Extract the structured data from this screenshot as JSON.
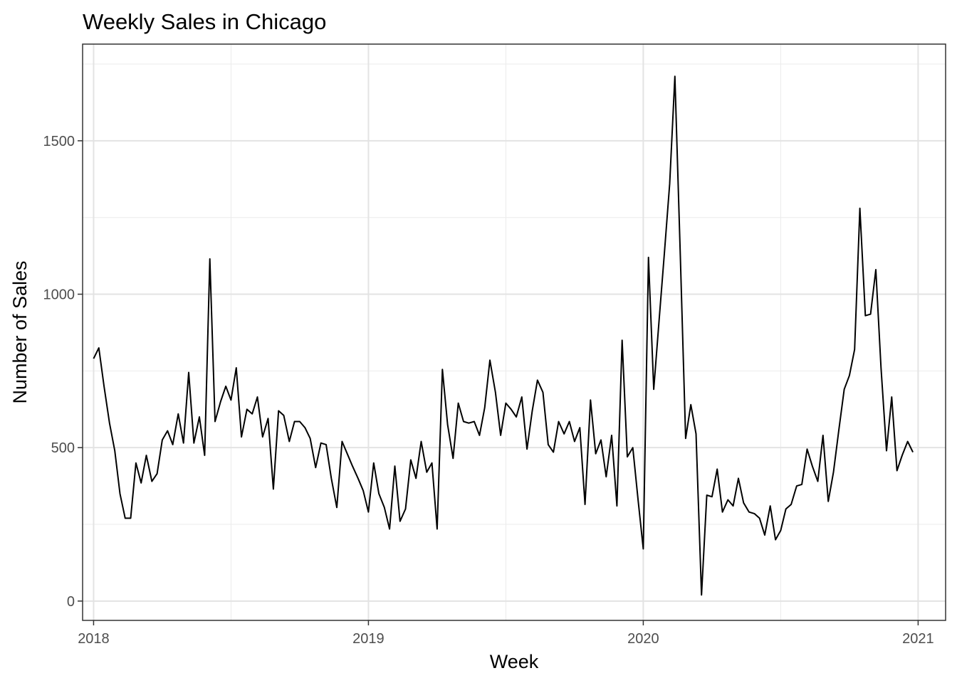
{
  "chart_data": {
    "type": "line",
    "title": "Weekly Sales in Chicago",
    "xlabel": "Week",
    "ylabel": "Number of Sales",
    "xlim": [
      2017.96,
      2021.1
    ],
    "ylim": [
      -63,
      1815
    ],
    "x_ticks": [
      2018,
      2019,
      2020,
      2021
    ],
    "x_tick_labels": [
      "2018",
      "2019",
      "2020",
      "2021"
    ],
    "y_ticks": [
      0,
      500,
      1000,
      1500
    ],
    "y_tick_labels": [
      "0",
      "500",
      "1000",
      "1500"
    ],
    "grid": true,
    "theme": "black-and-white",
    "series": [
      {
        "name": "Weekly Sales",
        "color": "#000000",
        "x": [
          2018.0,
          2018.019,
          2018.038,
          2018.058,
          2018.077,
          2018.096,
          2018.115,
          2018.135,
          2018.154,
          2018.173,
          2018.192,
          2018.212,
          2018.231,
          2018.25,
          2018.269,
          2018.288,
          2018.308,
          2018.327,
          2018.346,
          2018.365,
          2018.385,
          2018.404,
          2018.423,
          2018.442,
          2018.462,
          2018.481,
          2018.5,
          2018.519,
          2018.538,
          2018.558,
          2018.577,
          2018.596,
          2018.615,
          2018.635,
          2018.654,
          2018.673,
          2018.692,
          2018.712,
          2018.731,
          2018.75,
          2018.769,
          2018.788,
          2018.808,
          2018.827,
          2018.846,
          2018.865,
          2018.885,
          2018.904,
          2018.923,
          2018.942,
          2018.962,
          2018.981,
          2019.0,
          2019.019,
          2019.038,
          2019.058,
          2019.077,
          2019.096,
          2019.115,
          2019.135,
          2019.154,
          2019.173,
          2019.192,
          2019.212,
          2019.231,
          2019.25,
          2019.269,
          2019.288,
          2019.308,
          2019.327,
          2019.346,
          2019.365,
          2019.385,
          2019.404,
          2019.423,
          2019.442,
          2019.462,
          2019.481,
          2019.5,
          2019.519,
          2019.538,
          2019.558,
          2019.577,
          2019.596,
          2019.615,
          2019.635,
          2019.654,
          2019.673,
          2019.692,
          2019.712,
          2019.731,
          2019.75,
          2019.769,
          2019.788,
          2019.808,
          2019.827,
          2019.846,
          2019.865,
          2019.885,
          2019.904,
          2019.923,
          2019.942,
          2019.962,
          2019.981,
          2020.0,
          2020.019,
          2020.038,
          2020.058,
          2020.077,
          2020.096,
          2020.115,
          2020.135,
          2020.154,
          2020.173,
          2020.192,
          2020.212,
          2020.231,
          2020.25,
          2020.269,
          2020.288,
          2020.308,
          2020.327,
          2020.346,
          2020.365,
          2020.385,
          2020.404,
          2020.423,
          2020.442,
          2020.462,
          2020.481,
          2020.5,
          2020.519,
          2020.538,
          2020.558,
          2020.577,
          2020.596,
          2020.615,
          2020.635,
          2020.654,
          2020.673,
          2020.692,
          2020.712,
          2020.731,
          2020.75,
          2020.769,
          2020.788,
          2020.808,
          2020.827,
          2020.846,
          2020.865,
          2020.885,
          2020.904,
          2020.923,
          2020.942,
          2020.962,
          2020.981
        ],
        "values": [
          790,
          825,
          700,
          580,
          490,
          350,
          270,
          270,
          450,
          385,
          475,
          390,
          415,
          525,
          555,
          510,
          610,
          515,
          745,
          515,
          600,
          475,
          1115,
          585,
          650,
          700,
          655,
          760,
          535,
          625,
          610,
          665,
          535,
          595,
          365,
          620,
          605,
          520,
          585,
          585,
          565,
          530,
          435,
          515,
          510,
          400,
          305,
          520,
          480,
          440,
          400,
          360,
          290,
          450,
          350,
          305,
          235,
          440,
          260,
          300,
          460,
          400,
          520,
          420,
          450,
          235,
          755,
          575,
          465,
          645,
          585,
          580,
          585,
          540,
          630,
          785,
          680,
          540,
          645,
          625,
          600,
          665,
          495,
          620,
          720,
          680,
          510,
          485,
          585,
          545,
          585,
          520,
          565,
          315,
          655,
          480,
          525,
          405,
          540,
          310,
          850,
          470,
          500,
          330,
          170,
          1120,
          690,
          920,
          1135,
          1360,
          1710,
          1120,
          530,
          640,
          545,
          20,
          345,
          340,
          430,
          290,
          330,
          310,
          400,
          320,
          290,
          285,
          270,
          215,
          310,
          200,
          230,
          300,
          315,
          375,
          380,
          495,
          440,
          390,
          540,
          325,
          420,
          560,
          690,
          735,
          820,
          1280,
          930,
          935,
          1080,
          760,
          490,
          665,
          425,
          475,
          520,
          485
        ]
      }
    ]
  }
}
